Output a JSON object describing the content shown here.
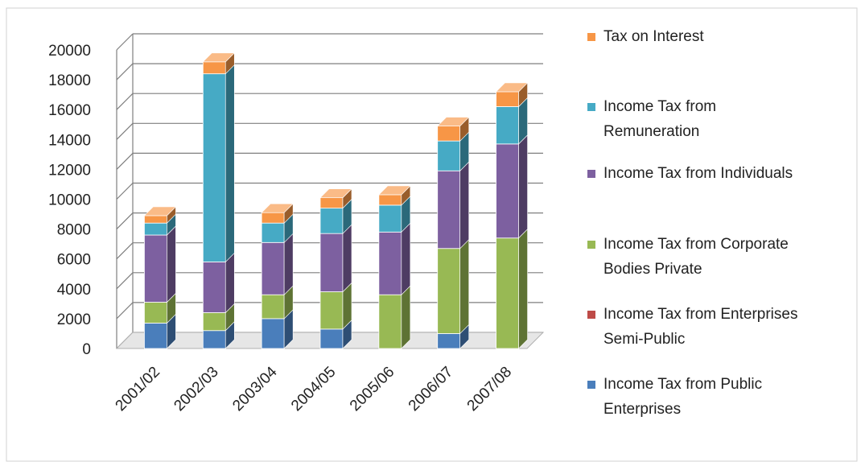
{
  "chart_data": {
    "type": "bar",
    "stacked": true,
    "three_d": true,
    "categories": [
      "2001/02",
      "2002/03",
      "2003/04",
      "2004/05",
      "2005/06",
      "2006/07",
      "2007/08"
    ],
    "series": [
      {
        "name": "Income Tax from Public Enterprises",
        "color": "#4A7EBB",
        "values": [
          1700,
          1200,
          2000,
          1300,
          0,
          1000,
          0
        ]
      },
      {
        "name": "Income Tax from Enterprises Semi-Public",
        "color": "#BE4B48",
        "values": [
          0,
          0,
          0,
          0,
          0,
          0,
          0
        ]
      },
      {
        "name": "Income Tax from Corporate Bodies Private",
        "color": "#98B954",
        "values": [
          1400,
          1200,
          1600,
          2500,
          3600,
          5700,
          7400
        ]
      },
      {
        "name": "Income Tax from Individuals",
        "color": "#7D60A0",
        "values": [
          4500,
          3400,
          3500,
          3900,
          4200,
          5200,
          6300
        ]
      },
      {
        "name": "Income Tax from Remuneration",
        "color": "#46AAC5",
        "values": [
          800,
          12600,
          1300,
          1700,
          1800,
          2000,
          2500
        ]
      },
      {
        "name": "Tax on Interest",
        "color": "#F79646",
        "values": [
          500,
          800,
          700,
          700,
          700,
          1000,
          1000
        ]
      }
    ],
    "yticks": [
      "0",
      "2000",
      "4000",
      "6000",
      "8000",
      "10000",
      "12000",
      "14000",
      "16000",
      "18000",
      "20000"
    ],
    "ylim": [
      0,
      20000
    ],
    "legend_position": "right",
    "grid": true
  },
  "legend": {
    "items": [
      {
        "text": "Tax on Interest",
        "color": "#F79646"
      },
      {
        "text": "Income Tax from\nRemuneration",
        "color": "#46AAC5"
      },
      {
        "text": "Income Tax from Individuals",
        "color": "#7D60A0"
      },
      {
        "text": "Income Tax from Corporate\nBodies Private",
        "color": "#98B954"
      },
      {
        "text": "Income Tax from Enterprises\nSemi-Public",
        "color": "#BE4B48"
      },
      {
        "text": "Income Tax from Public\nEnterprises",
        "color": "#4A7EBB"
      }
    ]
  }
}
